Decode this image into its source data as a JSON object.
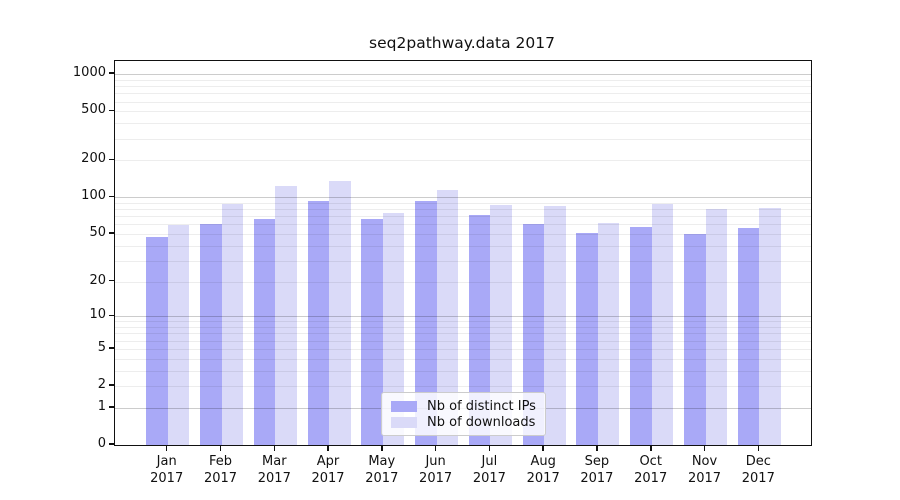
{
  "title": "seq2pathway.data 2017",
  "chart_data": {
    "type": "bar",
    "title": "seq2pathway.data 2017",
    "year": "2017",
    "categories": [
      "Jan",
      "Feb",
      "Mar",
      "Apr",
      "May",
      "Jun",
      "Jul",
      "Aug",
      "Sep",
      "Oct",
      "Nov",
      "Dec"
    ],
    "series": [
      {
        "name": "Nb of distinct IPs",
        "color": "#a9a9f7",
        "values": [
          47,
          61,
          67,
          93,
          66,
          93,
          71,
          60,
          51,
          57,
          50,
          56
        ]
      },
      {
        "name": "Nb of downloads",
        "color": "#dadaf8",
        "values": [
          59,
          89,
          124,
          136,
          74,
          115,
          87,
          85,
          62,
          89,
          81,
          82
        ]
      }
    ],
    "xlabel": "",
    "ylabel": "",
    "y_axis": {
      "scale": "log10(value+1)",
      "tick_values": [
        0,
        1,
        2,
        5,
        10,
        20,
        50,
        100,
        200,
        500,
        1000
      ],
      "tick_labels": [
        "0",
        "1",
        "2",
        "5",
        "10",
        "20",
        "50",
        "100",
        "200",
        "500",
        "1000"
      ],
      "ylim": [
        0,
        1280
      ]
    },
    "grid": {
      "horizontal": true,
      "minor_log_lines": true
    },
    "legend": {
      "position": "bottom-center",
      "entries": [
        "Nb of distinct IPs",
        "Nb of downloads"
      ]
    },
    "colors": {
      "axis": "#111111",
      "grid_major": "#cccccc",
      "grid_minor": "#ececec",
      "background": "#ffffff"
    }
  }
}
